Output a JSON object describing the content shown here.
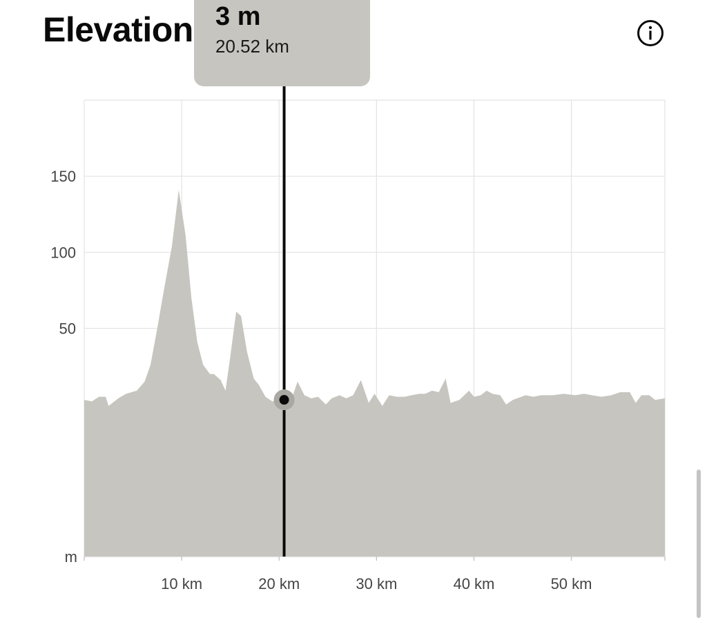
{
  "header": {
    "title": "Elevation",
    "info_icon": "info-circle-icon"
  },
  "tooltip": {
    "value": "3 m",
    "distance": "20.52 km"
  },
  "colors": {
    "fill": "#c6c5bf",
    "grid": "#e3e3e3",
    "cursor": "#0a0a0a",
    "axis_text": "#444444"
  },
  "chart_data": {
    "type": "area",
    "xlabel": "",
    "ylabel": "m",
    "x_unit": "km",
    "xlim": [
      0,
      59.6
    ],
    "ylim": [
      -100,
      200
    ],
    "x_ticks": [
      10,
      20,
      30,
      40,
      50
    ],
    "x_tick_labels": [
      "10 km",
      "20 km",
      "30 km",
      "40 km",
      "50 km"
    ],
    "y_ticks": [
      50,
      100,
      150
    ],
    "y_tick_labels": [
      "50",
      "100",
      "150"
    ],
    "grid": true,
    "cursor": {
      "x": 20.52,
      "y": 3
    },
    "x": [
      0,
      0.8,
      1.5,
      2.2,
      2.5,
      3.5,
      4.3,
      5.4,
      6.2,
      6.8,
      7.5,
      8.2,
      9.0,
      9.7,
      10.4,
      11.0,
      11.6,
      12.2,
      12.9,
      13.3,
      14.0,
      14.5,
      15.0,
      15.6,
      16.1,
      16.7,
      17.4,
      17.9,
      18.6,
      19.3,
      20.0,
      20.6,
      21.3,
      21.9,
      22.6,
      23.3,
      24.0,
      24.8,
      25.4,
      26.2,
      26.9,
      27.6,
      28.4,
      29.2,
      29.8,
      30.6,
      31.3,
      32.1,
      32.9,
      33.6,
      34.4,
      35.0,
      35.7,
      36.4,
      37.1,
      37.6,
      38.5,
      39.5,
      40.0,
      40.7,
      41.3,
      41.9,
      42.7,
      43.3,
      44.0,
      45.3,
      46.1,
      46.9,
      48.1,
      49.2,
      50.4,
      51.3,
      52.1,
      53.1,
      54.1,
      55.0,
      56.0,
      56.6,
      57.2,
      58.0,
      58.6,
      59.6
    ],
    "y": [
      3,
      2,
      5,
      5,
      -1,
      4,
      7,
      9,
      15,
      26,
      50,
      76,
      104,
      141,
      111,
      70,
      41,
      26,
      20,
      20,
      16,
      9,
      32,
      61,
      58,
      35,
      17,
      13,
      5,
      2,
      3,
      4,
      4,
      15,
      6,
      4,
      5,
      0,
      4,
      6,
      4,
      6,
      16,
      1,
      7,
      -1,
      6,
      5,
      5,
      6,
      7,
      7,
      9,
      8,
      17,
      1,
      3,
      9,
      5,
      6,
      9,
      7,
      6,
      0,
      3,
      6,
      5,
      6,
      6,
      7,
      6,
      7,
      6,
      5,
      6,
      8,
      8,
      1,
      6,
      6,
      3,
      4
    ]
  }
}
